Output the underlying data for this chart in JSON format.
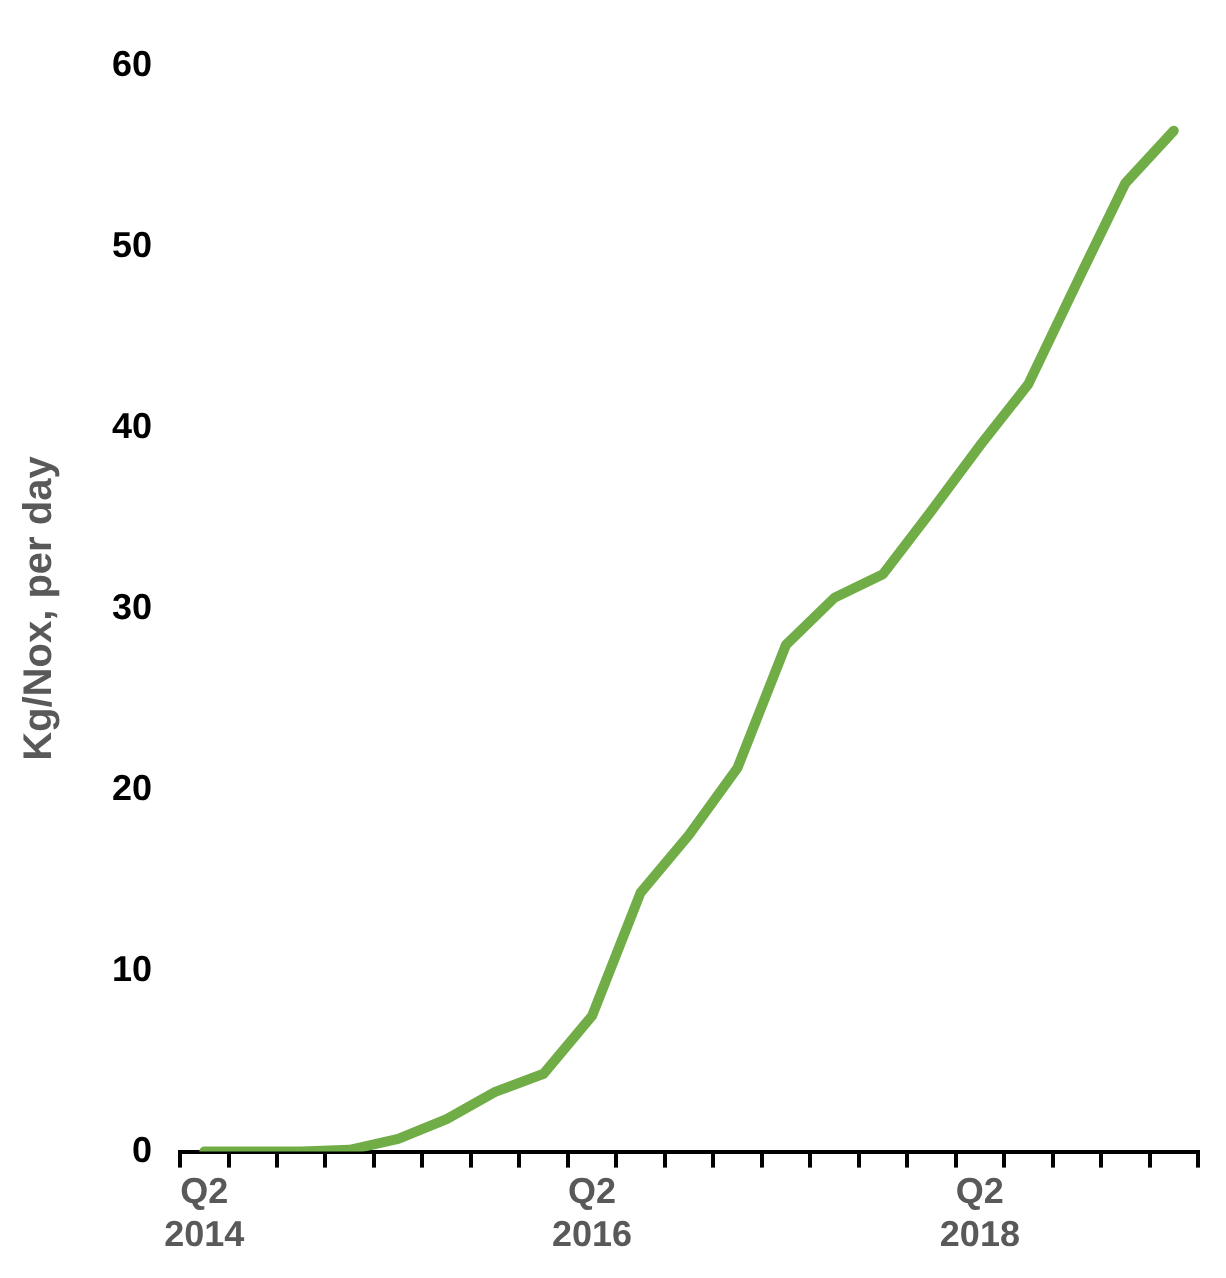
{
  "chart_data": {
    "type": "line",
    "ylabel": "Kg/Nox, per day",
    "categories": [
      "Q2 2014",
      null,
      null,
      null,
      null,
      null,
      null,
      null,
      "Q2 2016",
      null,
      null,
      null,
      null,
      null,
      null,
      null,
      "Q2 2018",
      null,
      null,
      null,
      null
    ],
    "series": [
      {
        "color": "#70ad47",
        "values": [
          0,
          0,
          0,
          0.1,
          0.7,
          1.8,
          3.3,
          4.3,
          7.5,
          14.3,
          17.5,
          21.2,
          28,
          30.6,
          31.9,
          35.4,
          39,
          42.4,
          48,
          53.5,
          56.4
        ]
      }
    ],
    "ylim": [
      0,
      60
    ],
    "yticks": [
      0,
      10,
      20,
      30,
      40,
      50,
      60
    ],
    "grid": false,
    "legend": false,
    "marker": "none",
    "line_style": "solid"
  }
}
